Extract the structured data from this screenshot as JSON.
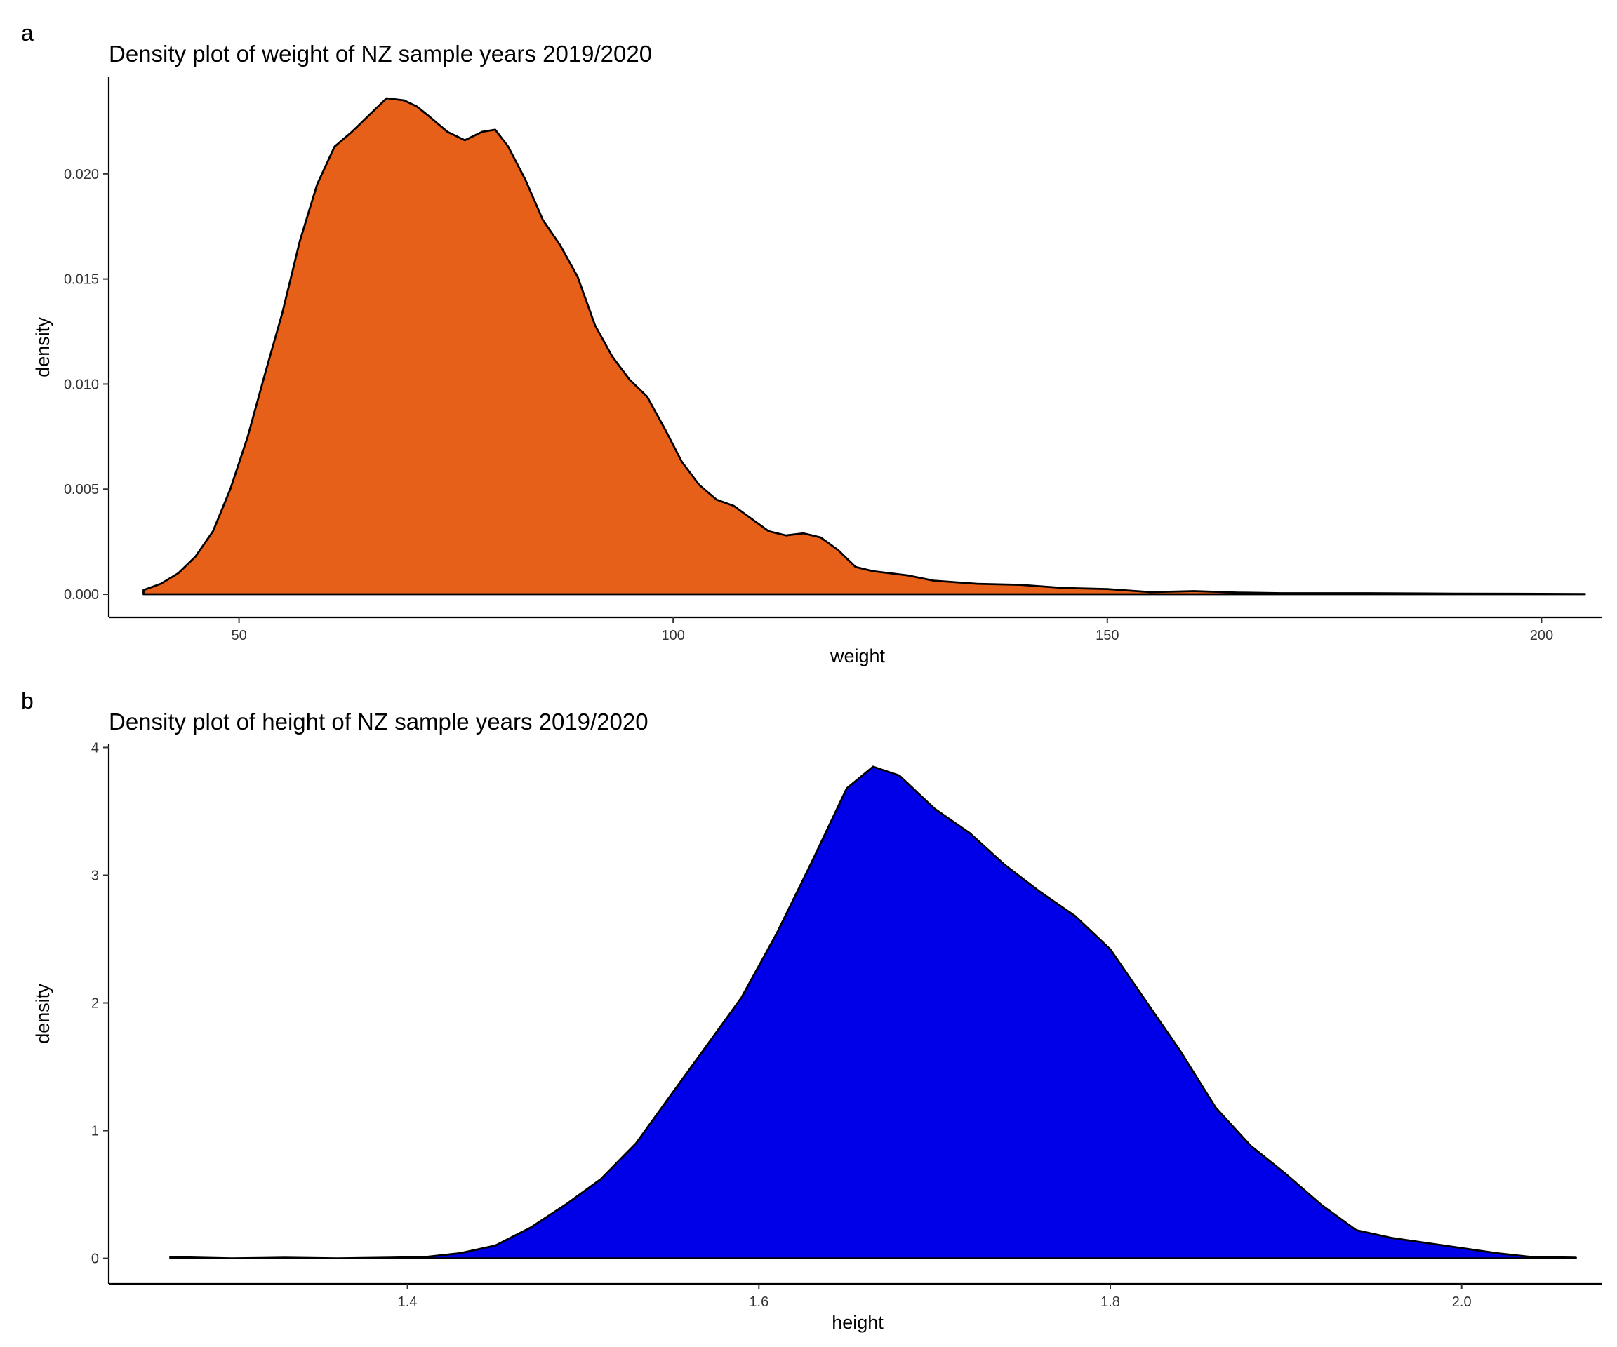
{
  "panels": [
    {
      "tag": "a"
    },
    {
      "tag": "b"
    }
  ],
  "chart_data": [
    {
      "type": "area",
      "title": "Density plot of weight of NZ sample years 2019/2020",
      "xlabel": "weight",
      "ylabel": "density",
      "fill_color": "#E6601A",
      "outline_color": "#000000",
      "grid": false,
      "legend": "none",
      "xlim": [
        35,
        207
      ],
      "ylim": [
        -0.0011,
        0.0246
      ],
      "xticks": [
        50,
        100,
        150,
        200
      ],
      "xtick_labels": [
        "50",
        "100",
        "150",
        "200"
      ],
      "yticks": [
        0,
        0.005,
        0.01,
        0.015,
        0.02
      ],
      "ytick_labels": [
        "0.000",
        "0.005",
        "0.010",
        "0.015",
        "0.020"
      ],
      "x": [
        39,
        41,
        43,
        45,
        47,
        49,
        51,
        53,
        55,
        57,
        59,
        61,
        63,
        65,
        67,
        69,
        70.5,
        72,
        74,
        76,
        78,
        79.5,
        81,
        83,
        85,
        87,
        89,
        91,
        93,
        95,
        97,
        99,
        101,
        103,
        105,
        107,
        109,
        111,
        113,
        115,
        117,
        119,
        121,
        123,
        125,
        127,
        130,
        135,
        140,
        145,
        150,
        155,
        160,
        165,
        170,
        180,
        190,
        200,
        205
      ],
      "y": [
        0.0002,
        0.0005,
        0.001,
        0.0018,
        0.003,
        0.005,
        0.0075,
        0.0105,
        0.0134,
        0.0168,
        0.0195,
        0.0213,
        0.022,
        0.0228,
        0.0236,
        0.0235,
        0.0232,
        0.0227,
        0.022,
        0.0216,
        0.022,
        0.0221,
        0.0213,
        0.0197,
        0.0178,
        0.0166,
        0.0151,
        0.0128,
        0.0113,
        0.0102,
        0.0094,
        0.0079,
        0.0063,
        0.0052,
        0.0045,
        0.0042,
        0.0036,
        0.003,
        0.0028,
        0.0029,
        0.0027,
        0.0021,
        0.0013,
        0.0011,
        0.001,
        0.0009,
        0.00065,
        0.0005,
        0.00045,
        0.0003,
        0.00025,
        0.0001,
        0.00015,
        8e-05,
        5e-05,
        5e-05,
        3e-05,
        2e-05,
        1e-05
      ]
    },
    {
      "type": "area",
      "title": "Density plot of height of NZ sample years 2019/2020",
      "xlabel": "height",
      "ylabel": "density",
      "fill_color": "#0000E8",
      "outline_color": "#000000",
      "grid": false,
      "legend": "none",
      "xlim": [
        1.23,
        2.08
      ],
      "ylim": [
        -0.2,
        4.03
      ],
      "xticks": [
        1.4,
        1.6,
        1.8,
        2.0
      ],
      "xtick_labels": [
        "1.4",
        "1.6",
        "1.8",
        "2.0"
      ],
      "yticks": [
        0,
        1,
        2,
        3,
        4
      ],
      "ytick_labels": [
        "0",
        "1",
        "2",
        "3",
        "4"
      ],
      "x": [
        1.265,
        1.3,
        1.33,
        1.36,
        1.39,
        1.41,
        1.43,
        1.45,
        1.47,
        1.49,
        1.51,
        1.53,
        1.55,
        1.57,
        1.59,
        1.61,
        1.63,
        1.65,
        1.665,
        1.68,
        1.7,
        1.72,
        1.74,
        1.76,
        1.78,
        1.8,
        1.82,
        1.84,
        1.86,
        1.88,
        1.9,
        1.92,
        1.94,
        1.96,
        1.98,
        2.0,
        2.02,
        2.04,
        2.065
      ],
      "y": [
        0.01,
        0.0,
        0.005,
        0.0,
        0.005,
        0.01,
        0.04,
        0.1,
        0.24,
        0.42,
        0.62,
        0.9,
        1.28,
        1.66,
        2.04,
        2.54,
        3.1,
        3.68,
        3.85,
        3.78,
        3.52,
        3.33,
        3.08,
        2.87,
        2.68,
        2.42,
        2.02,
        1.62,
        1.18,
        0.88,
        0.66,
        0.42,
        0.22,
        0.16,
        0.12,
        0.08,
        0.04,
        0.01,
        0.005
      ]
    }
  ]
}
